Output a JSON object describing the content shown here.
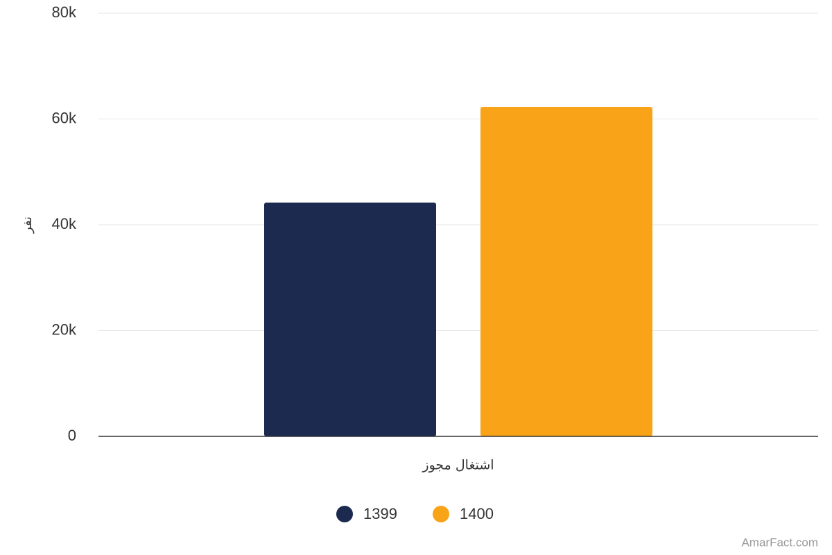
{
  "chart_data": {
    "type": "bar",
    "y_label": "نفر",
    "categories": [
      "اشتغال مجوز"
    ],
    "series": [
      {
        "name": "1399",
        "color": "#1b2a4e",
        "values": [
          44200
        ]
      },
      {
        "name": "1400",
        "color": "#f9a319",
        "values": [
          62300
        ]
      }
    ],
    "ylim": [
      0,
      80000
    ],
    "yticks": [
      0,
      {
        "value": 20000,
        "label": "20k"
      },
      {
        "value": 40000,
        "label": "40k"
      },
      {
        "value": 60000,
        "label": "60k"
      },
      {
        "value": 80000,
        "label": "80k"
      }
    ],
    "grid": true,
    "legend": "bottom",
    "credit": "AmarFact.com"
  }
}
